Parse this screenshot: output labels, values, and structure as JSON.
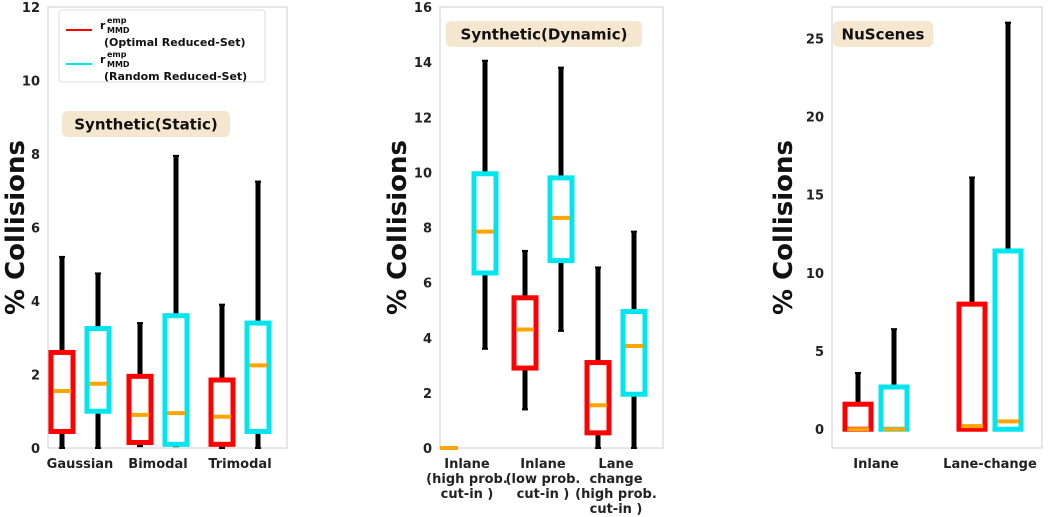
{
  "chart_data": [
    {
      "type": "box",
      "title": "Synthetic(Static)",
      "ylabel": "% Collisions",
      "ylim": [
        0,
        12
      ],
      "yticks": [
        0,
        2,
        4,
        6,
        8,
        10,
        12
      ],
      "categories": [
        "Gaussian",
        "Bimodal",
        "Trimodal"
      ],
      "legend": {
        "entries": [
          {
            "label_main": "r",
            "label_super": "emp",
            "label_sub": "MMD",
            "desc": "(Optimal Reduced-Set)",
            "color": "#ff0000"
          },
          {
            "label_main": "r",
            "label_super": "emp",
            "label_sub": "MMD",
            "desc": "(Random Reduced-Set)",
            "color": "#00e5ee"
          }
        ]
      },
      "series": [
        {
          "name": "Optimal Reduced-Set",
          "color": "#ff0000",
          "boxes": [
            {
              "whislo": 0.0,
              "q1": 0.45,
              "med": 1.55,
              "q3": 2.6,
              "whishi": 5.2
            },
            {
              "whislo": 0.05,
              "q1": 0.15,
              "med": 0.9,
              "q3": 1.95,
              "whishi": 3.4
            },
            {
              "whislo": 0.0,
              "q1": 0.1,
              "med": 0.85,
              "q3": 1.85,
              "whishi": 3.9
            }
          ]
        },
        {
          "name": "Random Reduced-Set",
          "color": "#00e5ee",
          "boxes": [
            {
              "whislo": 0.0,
              "q1": 1.0,
              "med": 1.75,
              "q3": 3.25,
              "whishi": 4.75
            },
            {
              "whislo": 0.05,
              "q1": 0.1,
              "med": 0.95,
              "q3": 3.6,
              "whishi": 7.95
            },
            {
              "whislo": 0.0,
              "q1": 0.45,
              "med": 2.25,
              "q3": 3.4,
              "whishi": 7.25
            }
          ]
        }
      ]
    },
    {
      "type": "box",
      "title": "Synthetic(Dynamic)",
      "ylabel": "% Collisions",
      "ylim": [
        0,
        16
      ],
      "yticks": [
        0,
        2,
        4,
        6,
        8,
        10,
        12,
        14,
        16
      ],
      "categories": [
        [
          "Inlane",
          "(high prob.",
          "cut-in )"
        ],
        [
          "Inlane",
          "(low prob.",
          "cut-in )"
        ],
        [
          "Lane",
          "change",
          "(high prob.",
          "cut-in )"
        ]
      ],
      "series": [
        {
          "name": "Optimal Reduced-Set",
          "color": "#ff0000",
          "boxes": [
            {
              "whislo": 0.0,
              "q1": 0.0,
              "med": 0.0,
              "q3": 0.0,
              "whishi": 0.0
            },
            {
              "whislo": 1.4,
              "q1": 2.9,
              "med": 4.3,
              "q3": 5.45,
              "whishi": 7.15
            },
            {
              "whislo": 0.0,
              "q1": 0.55,
              "med": 1.55,
              "q3": 3.1,
              "whishi": 6.55
            }
          ]
        },
        {
          "name": "Random Reduced-Set",
          "color": "#00e5ee",
          "boxes": [
            {
              "whislo": 3.6,
              "q1": 6.35,
              "med": 7.85,
              "q3": 9.95,
              "whishi": 14.05
            },
            {
              "whislo": 4.25,
              "q1": 6.8,
              "med": 8.35,
              "q3": 9.8,
              "whishi": 13.8
            },
            {
              "whislo": 0.0,
              "q1": 1.95,
              "med": 3.7,
              "q3": 4.95,
              "whishi": 7.85
            }
          ]
        }
      ]
    },
    {
      "type": "box",
      "title": "NuScenes",
      "ylabel": "% Collisions",
      "ylim": [
        -1.2,
        27
      ],
      "yticks": [
        0,
        5,
        10,
        15,
        20,
        25
      ],
      "categories": [
        "Inlane",
        "Lane-change"
      ],
      "series": [
        {
          "name": "Optimal Reduced-Set",
          "color": "#ff0000",
          "boxes": [
            {
              "whislo": 0.0,
              "q1": 0.0,
              "med": 0.0,
              "q3": 1.6,
              "whishi": 3.6
            },
            {
              "whislo": 0.0,
              "q1": 0.0,
              "med": 0.2,
              "q3": 8.0,
              "whishi": 16.1
            }
          ]
        },
        {
          "name": "Random Reduced-Set",
          "color": "#00e5ee",
          "boxes": [
            {
              "whislo": 0.0,
              "q1": 0.0,
              "med": 0.0,
              "q3": 2.7,
              "whishi": 6.4
            },
            {
              "whislo": 0.0,
              "q1": 0.0,
              "med": 0.5,
              "q3": 11.4,
              "whishi": 26.0
            }
          ]
        }
      ]
    }
  ],
  "colors": {
    "median": "#ffa500",
    "whisker": "#000000",
    "axes": "#cccccc",
    "title_bg": "#f5e6cf"
  }
}
